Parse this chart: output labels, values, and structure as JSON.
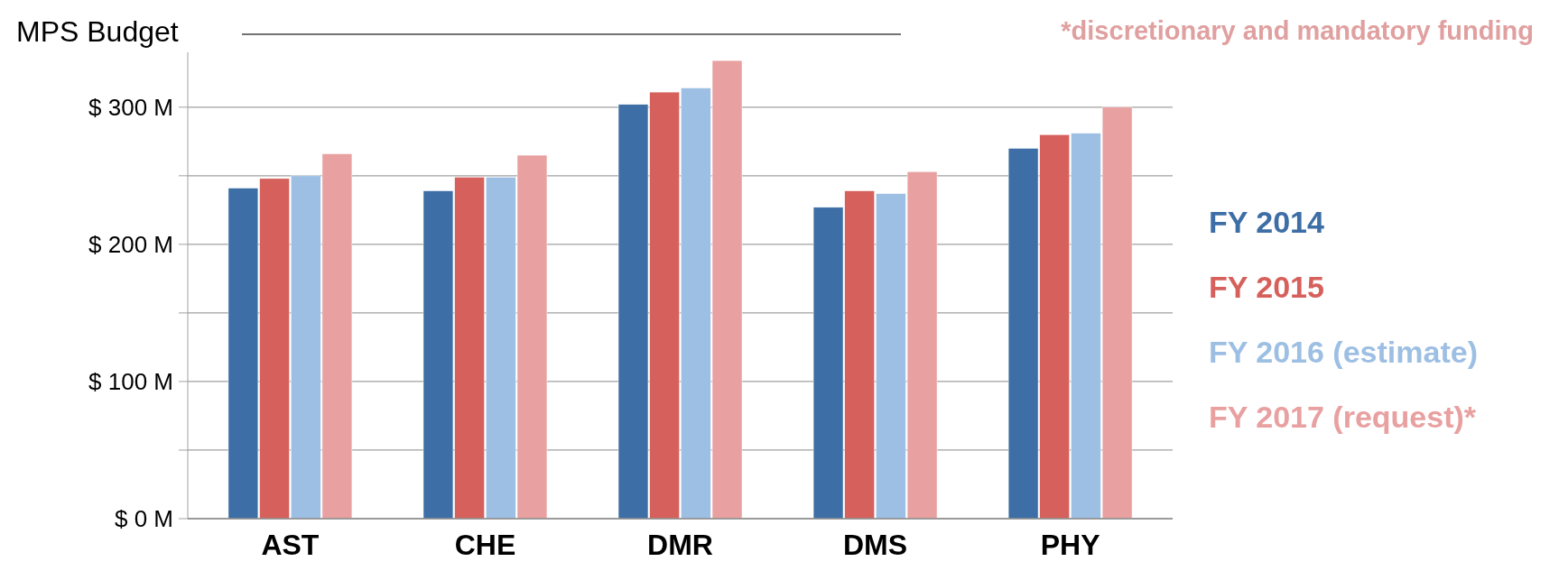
{
  "chart_data": {
    "type": "bar",
    "title": "MPS Budget",
    "annotations": [
      "*discretionary and mandatory funding"
    ],
    "categories": [
      "AST",
      "CHE",
      "DMR",
      "DMS",
      "PHY"
    ],
    "series": [
      {
        "name": "FY 2014",
        "color": "#3d6ea5",
        "values": [
          241,
          239,
          302,
          227,
          270
        ]
      },
      {
        "name": "FY 2015",
        "color": "#d6605b",
        "values": [
          248,
          249,
          311,
          239,
          280
        ]
      },
      {
        "name": "FY 2016 (estimate)",
        "color": "#9dbfe3",
        "values": [
          250,
          249,
          314,
          237,
          281
        ]
      },
      {
        "name": "FY 2017 (request)*",
        "color": "#e8a0a0",
        "values": [
          266,
          265,
          334,
          253,
          300
        ]
      }
    ],
    "ylim": [
      0,
      340
    ],
    "yticks": [
      {
        "value": 0,
        "label": "$ 0 M"
      },
      {
        "value": 50,
        "label": null
      },
      {
        "value": 100,
        "label": "$ 100 M"
      },
      {
        "value": 150,
        "label": null
      },
      {
        "value": 200,
        "label": "$ 200 M"
      },
      {
        "value": 250,
        "label": null
      },
      {
        "value": 300,
        "label": "$ 300 M"
      }
    ],
    "grid": true,
    "legend": "right"
  }
}
